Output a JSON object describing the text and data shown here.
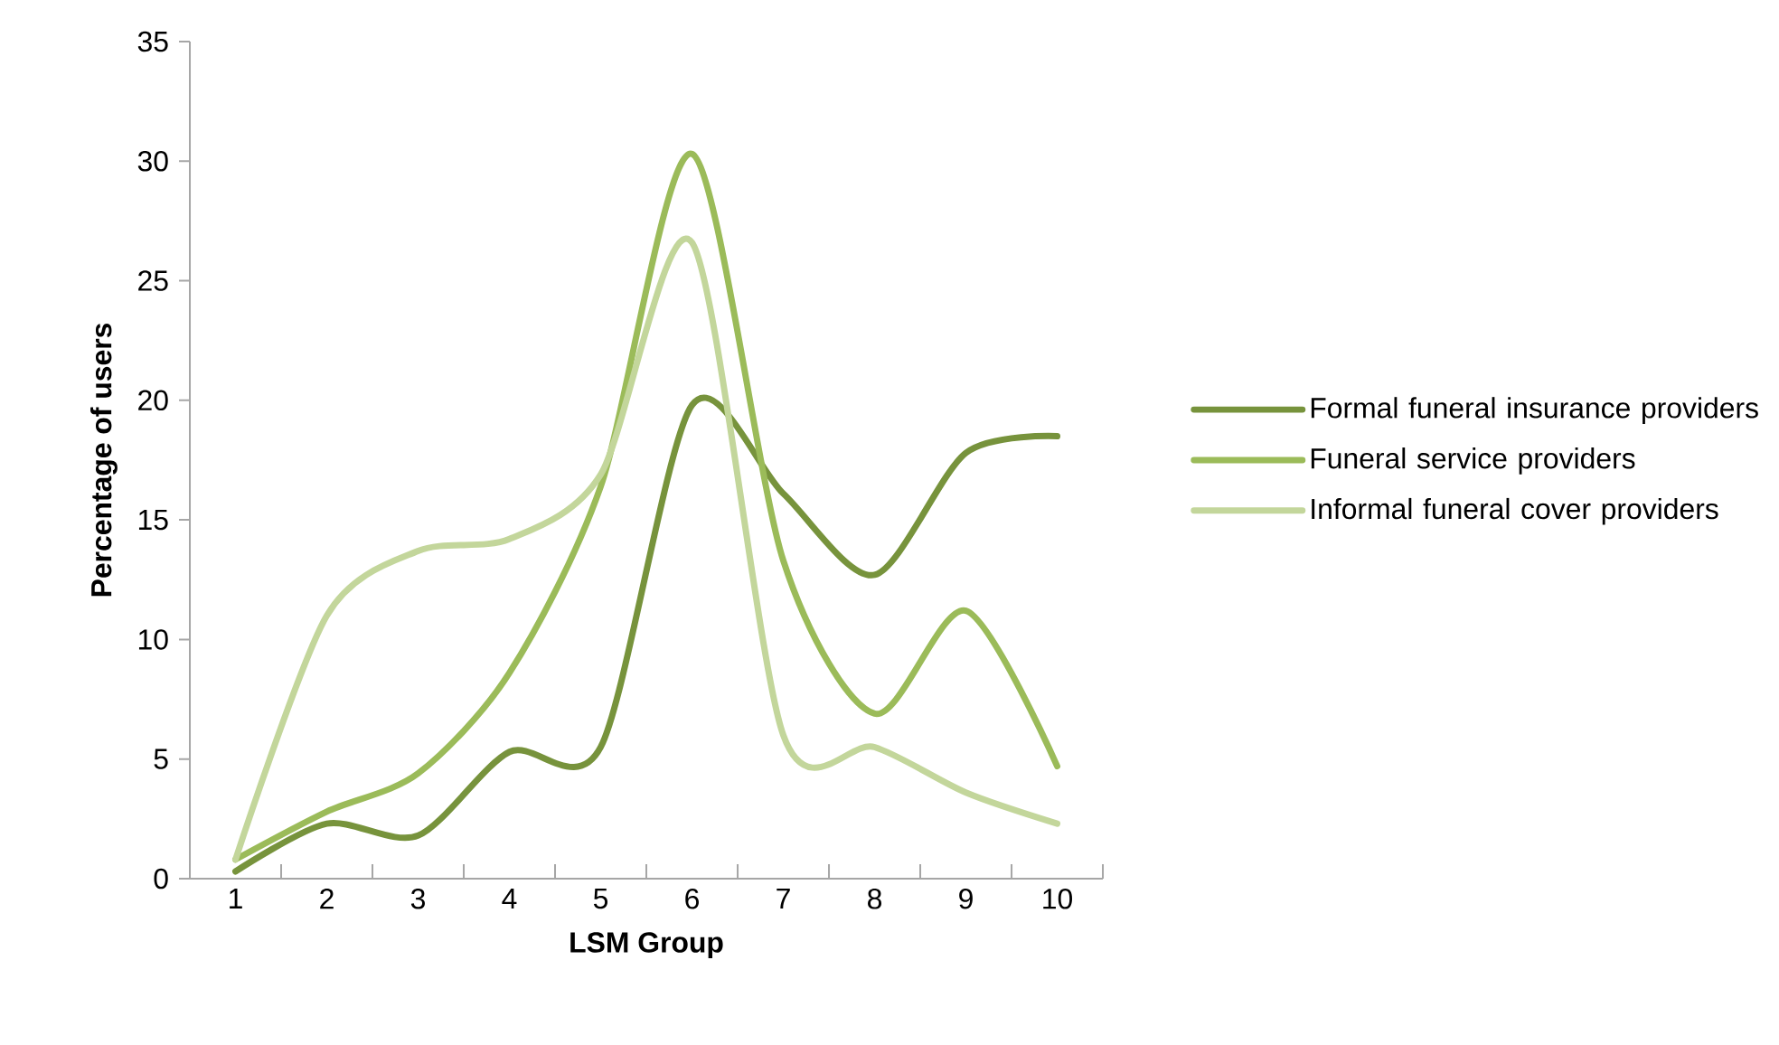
{
  "chart_data": {
    "type": "line",
    "xlabel": "LSM Group",
    "ylabel": "Percentage of users",
    "categories": [
      "1",
      "2",
      "3",
      "4",
      "5",
      "6",
      "7",
      "8",
      "9",
      "10"
    ],
    "series": [
      {
        "name": "Formal funeral insurance providers",
        "color": "#77933c",
        "values": [
          0.3,
          2.3,
          1.8,
          5.3,
          5.5,
          19.8,
          16.1,
          12.7,
          17.8,
          18.5
        ]
      },
      {
        "name": "Funeral service providers",
        "color": "#9bbb59",
        "values": [
          0.8,
          2.8,
          4.4,
          8.6,
          16.4,
          30.3,
          13.3,
          6.9,
          11.2,
          4.7
        ]
      },
      {
        "name": "Informal funeral cover providers",
        "color": "#c3d69b",
        "values": [
          0.8,
          11.0,
          13.7,
          14.2,
          16.9,
          26.6,
          6.0,
          5.5,
          3.6,
          2.3
        ]
      }
    ],
    "ylim": [
      0,
      35
    ],
    "yticks": [
      0,
      5,
      10,
      15,
      20,
      25,
      30,
      35
    ],
    "grid": false,
    "legend": "right",
    "line_style": "solid",
    "marker": "none"
  }
}
